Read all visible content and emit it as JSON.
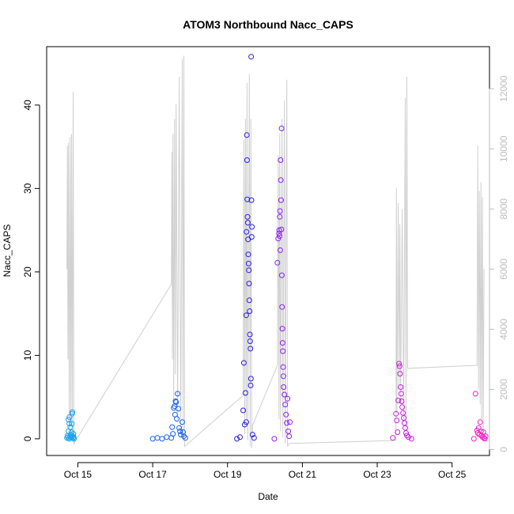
{
  "chart_data": {
    "type": "scatter",
    "title": "ATOM3 Northbound Nacc_CAPS",
    "xlabel": "Date",
    "ylabel": "Nacc_CAPS",
    "xlim": [
      "2021-10-14T04:00",
      "2021-10-26T00:00"
    ],
    "ylim": [
      -2,
      47
    ],
    "y2lim": [
      -200,
      13400
    ],
    "x_ticks": [
      {
        "date": "2021-10-15T00:00",
        "label": "Oct 15"
      },
      {
        "date": "2021-10-17T00:00",
        "label": "Oct 17"
      },
      {
        "date": "2021-10-19T00:00",
        "label": "Oct 19"
      },
      {
        "date": "2021-10-21T00:00",
        "label": "Oct 21"
      },
      {
        "date": "2021-10-23T00:00",
        "label": "Oct 23"
      },
      {
        "date": "2021-10-25T00:00",
        "label": "Oct 25"
      }
    ],
    "y_ticks": [
      0,
      10,
      20,
      30,
      40
    ],
    "y2_ticks": [
      0,
      2000,
      4000,
      6000,
      8000,
      10000,
      12000
    ],
    "grid": false,
    "line_color": "#d0d0d0",
    "secondary_line": [
      {
        "x": "2021-10-14T17:00",
        "y": 6000
      },
      {
        "x": "2021-10-14T17:20",
        "y": 10100
      },
      {
        "x": "2021-10-14T17:40",
        "y": 3000
      },
      {
        "x": "2021-10-14T18:00",
        "y": 10200
      },
      {
        "x": "2021-10-14T18:30",
        "y": 500
      },
      {
        "x": "2021-10-14T19:00",
        "y": 10400
      },
      {
        "x": "2021-10-14T19:30",
        "y": 800
      },
      {
        "x": "2021-10-14T20:00",
        "y": 10500
      },
      {
        "x": "2021-10-14T20:30",
        "y": 300
      },
      {
        "x": "2021-10-14T21:00",
        "y": 11900
      },
      {
        "x": "2021-10-14T21:30",
        "y": 200
      },
      {
        "x": "2021-10-17T12:00",
        "y": 5500
      },
      {
        "x": "2021-10-17T12:20",
        "y": 9900
      },
      {
        "x": "2021-10-17T12:40",
        "y": 3000
      },
      {
        "x": "2021-10-17T13:00",
        "y": 10500
      },
      {
        "x": "2021-10-17T13:30",
        "y": 1500
      },
      {
        "x": "2021-10-17T14:00",
        "y": 11000
      },
      {
        "x": "2021-10-17T14:30",
        "y": 2500
      },
      {
        "x": "2021-10-17T15:00",
        "y": 11500
      },
      {
        "x": "2021-10-17T16:00",
        "y": 1000
      },
      {
        "x": "2021-10-17T17:00",
        "y": 12400
      },
      {
        "x": "2021-10-17T18:00",
        "y": 500
      },
      {
        "x": "2021-10-17T19:00",
        "y": 13000
      },
      {
        "x": "2021-10-17T19:30",
        "y": 300
      },
      {
        "x": "2021-10-17T20:00",
        "y": 13100
      },
      {
        "x": "2021-10-17T20:30",
        "y": 100
      },
      {
        "x": "2021-10-19T10:00",
        "y": 1800
      },
      {
        "x": "2021-10-19T10:30",
        "y": 10300
      },
      {
        "x": "2021-10-19T11:00",
        "y": 500
      },
      {
        "x": "2021-10-19T11:30",
        "y": 11000
      },
      {
        "x": "2021-10-19T12:00",
        "y": 1000
      },
      {
        "x": "2021-10-19T12:30",
        "y": 12200
      },
      {
        "x": "2021-10-19T13:00",
        "y": 300
      },
      {
        "x": "2021-10-19T14:00",
        "y": 12500
      },
      {
        "x": "2021-10-19T14:30",
        "y": 100
      },
      {
        "x": "2021-10-19T15:00",
        "y": 11000
      },
      {
        "x": "2021-10-19T15:30",
        "y": 50
      },
      {
        "x": "2021-10-19T16:00",
        "y": 800
      },
      {
        "x": "2021-10-20T08:00",
        "y": 2800
      },
      {
        "x": "2021-10-20T08:30",
        "y": 9800
      },
      {
        "x": "2021-10-20T09:00",
        "y": 1000
      },
      {
        "x": "2021-10-20T09:30",
        "y": 10500
      },
      {
        "x": "2021-10-20T10:00",
        "y": 600
      },
      {
        "x": "2021-10-20T11:00",
        "y": 11000
      },
      {
        "x": "2021-10-20T11:30",
        "y": 400
      },
      {
        "x": "2021-10-20T12:30",
        "y": 11600
      },
      {
        "x": "2021-10-20T13:00",
        "y": 200
      },
      {
        "x": "2021-10-20T14:00",
        "y": 12300
      },
      {
        "x": "2021-10-20T14:30",
        "y": 100
      },
      {
        "x": "2021-10-20T15:30",
        "y": 200
      },
      {
        "x": "2021-10-23T12:00",
        "y": 300
      },
      {
        "x": "2021-10-23T12:20",
        "y": 8700
      },
      {
        "x": "2021-10-23T12:40",
        "y": 1200
      },
      {
        "x": "2021-10-23T13:30",
        "y": 8200
      },
      {
        "x": "2021-10-23T14:00",
        "y": 2000
      },
      {
        "x": "2021-10-23T14:30",
        "y": 7500
      },
      {
        "x": "2021-10-23T15:00",
        "y": 1500
      },
      {
        "x": "2021-10-23T16:00",
        "y": 8000
      },
      {
        "x": "2021-10-23T17:00",
        "y": 1000
      },
      {
        "x": "2021-10-23T18:00",
        "y": 11700
      },
      {
        "x": "2021-10-23T18:30",
        "y": 600
      },
      {
        "x": "2021-10-23T19:00",
        "y": 12400
      },
      {
        "x": "2021-10-23T19:30",
        "y": 2700
      },
      {
        "x": "2021-10-25T16:00",
        "y": 2800
      },
      {
        "x": "2021-10-25T16:30",
        "y": 10100
      },
      {
        "x": "2021-10-25T17:00",
        "y": 2000
      },
      {
        "x": "2021-10-25T17:30",
        "y": 8600
      },
      {
        "x": "2021-10-25T18:00",
        "y": 1500
      },
      {
        "x": "2021-10-25T18:30",
        "y": 8900
      },
      {
        "x": "2021-10-25T19:00",
        "y": 1000
      },
      {
        "x": "2021-10-25T19:30",
        "y": 8400
      },
      {
        "x": "2021-10-25T20:00",
        "y": 600
      },
      {
        "x": "2021-10-25T20:30",
        "y": 6000
      }
    ],
    "series": [
      {
        "color": "#1aa3f0",
        "points": [
          {
            "x": "2021-10-14T17:00",
            "y": 0.1
          },
          {
            "x": "2021-10-14T17:30",
            "y": 0.4
          },
          {
            "x": "2021-10-14T18:00",
            "y": 0.9
          },
          {
            "x": "2021-10-14T18:00",
            "y": 2.3
          },
          {
            "x": "2021-10-14T18:30",
            "y": 1.8
          },
          {
            "x": "2021-10-14T18:40",
            "y": 2.6
          },
          {
            "x": "2021-10-14T19:00",
            "y": 0.2
          },
          {
            "x": "2021-10-14T19:10",
            "y": 1.4
          },
          {
            "x": "2021-10-14T19:30",
            "y": 0.5
          },
          {
            "x": "2021-10-14T19:40",
            "y": 0.1
          },
          {
            "x": "2021-10-14T20:00",
            "y": 0.8
          },
          {
            "x": "2021-10-14T20:10",
            "y": 1.8
          },
          {
            "x": "2021-10-14T20:20",
            "y": 3.0
          },
          {
            "x": "2021-10-14T20:30",
            "y": 3.2
          },
          {
            "x": "2021-10-14T20:40",
            "y": 0.3
          },
          {
            "x": "2021-10-14T21:00",
            "y": 0.1
          },
          {
            "x": "2021-10-14T21:10",
            "y": 0.6
          },
          {
            "x": "2021-10-14T21:20",
            "y": 0.2
          },
          {
            "x": "2021-10-14T21:30",
            "y": 0.0
          },
          {
            "x": "2021-10-14T18:20",
            "y": 0.0
          },
          {
            "x": "2021-10-14T17:40",
            "y": 0.2
          },
          {
            "x": "2021-10-14T19:50",
            "y": 0.3
          }
        ]
      },
      {
        "color": "#1960ea",
        "points": [
          {
            "x": "2021-10-17T00:00",
            "y": 0.0
          },
          {
            "x": "2021-10-17T03:00",
            "y": 0.1
          },
          {
            "x": "2021-10-17T06:00",
            "y": 0.0
          },
          {
            "x": "2021-10-17T09:00",
            "y": 0.2
          },
          {
            "x": "2021-10-17T12:00",
            "y": 0.1
          },
          {
            "x": "2021-10-17T12:30",
            "y": 1.4
          },
          {
            "x": "2021-10-17T13:00",
            "y": 0.6
          },
          {
            "x": "2021-10-17T13:30",
            "y": 3.7
          },
          {
            "x": "2021-10-17T14:00",
            "y": 3.9
          },
          {
            "x": "2021-10-17T14:20",
            "y": 2.9
          },
          {
            "x": "2021-10-17T14:40",
            "y": 4.5
          },
          {
            "x": "2021-10-17T15:00",
            "y": 4.4
          },
          {
            "x": "2021-10-17T15:30",
            "y": 2.4
          },
          {
            "x": "2021-10-17T16:00",
            "y": 5.4
          },
          {
            "x": "2021-10-17T16:30",
            "y": 3.6
          },
          {
            "x": "2021-10-17T17:00",
            "y": 1.3
          },
          {
            "x": "2021-10-17T17:30",
            "y": 0.9
          },
          {
            "x": "2021-10-17T18:00",
            "y": 0.5
          },
          {
            "x": "2021-10-17T19:00",
            "y": 2.0
          },
          {
            "x": "2021-10-17T19:30",
            "y": 0.8
          },
          {
            "x": "2021-10-17T20:00",
            "y": 0.3
          },
          {
            "x": "2021-10-17T21:00",
            "y": 0.1
          }
        ]
      },
      {
        "color": "#2a1de8",
        "points": [
          {
            "x": "2021-10-19T06:00",
            "y": 0.0
          },
          {
            "x": "2021-10-19T08:00",
            "y": 0.2
          },
          {
            "x": "2021-10-19T10:00",
            "y": 3.4
          },
          {
            "x": "2021-10-19T10:30",
            "y": 9.1
          },
          {
            "x": "2021-10-19T11:00",
            "y": 1.7
          },
          {
            "x": "2021-10-19T11:30",
            "y": 5.5
          },
          {
            "x": "2021-10-19T12:00",
            "y": 2.0
          },
          {
            "x": "2021-10-19T12:00",
            "y": 14.8
          },
          {
            "x": "2021-10-19T12:10",
            "y": 24.8
          },
          {
            "x": "2021-10-19T12:20",
            "y": 36.4
          },
          {
            "x": "2021-10-19T12:30",
            "y": 33.4
          },
          {
            "x": "2021-10-19T12:40",
            "y": 28.7
          },
          {
            "x": "2021-10-19T12:50",
            "y": 26.6
          },
          {
            "x": "2021-10-19T13:00",
            "y": 25.9
          },
          {
            "x": "2021-10-19T13:10",
            "y": 23.9
          },
          {
            "x": "2021-10-19T13:20",
            "y": 22.1
          },
          {
            "x": "2021-10-19T13:30",
            "y": 21.0
          },
          {
            "x": "2021-10-19T13:40",
            "y": 20.2
          },
          {
            "x": "2021-10-19T13:50",
            "y": 18.6
          },
          {
            "x": "2021-10-19T14:00",
            "y": 16.6
          },
          {
            "x": "2021-10-19T14:10",
            "y": 15.3
          },
          {
            "x": "2021-10-19T14:20",
            "y": 12.5
          },
          {
            "x": "2021-10-19T14:30",
            "y": 11.7
          },
          {
            "x": "2021-10-19T14:40",
            "y": 10.8
          },
          {
            "x": "2021-10-19T14:50",
            "y": 6.4
          },
          {
            "x": "2021-10-19T15:00",
            "y": 7.2
          },
          {
            "x": "2021-10-19T15:10",
            "y": 45.8
          },
          {
            "x": "2021-10-19T15:20",
            "y": 28.6
          },
          {
            "x": "2021-10-19T15:30",
            "y": 24.2
          },
          {
            "x": "2021-10-19T15:40",
            "y": 25.4
          },
          {
            "x": "2021-10-19T16:00",
            "y": 0.5
          },
          {
            "x": "2021-10-19T17:00",
            "y": 0.1
          }
        ]
      },
      {
        "color": "#8d1ff0",
        "points": [
          {
            "x": "2021-10-20T06:00",
            "y": 0.0
          },
          {
            "x": "2021-10-20T08:00",
            "y": 21.1
          },
          {
            "x": "2021-10-20T08:30",
            "y": 24.0
          },
          {
            "x": "2021-10-20T09:00",
            "y": 24.6
          },
          {
            "x": "2021-10-20T09:10",
            "y": 25.0
          },
          {
            "x": "2021-10-20T09:20",
            "y": 24.3
          },
          {
            "x": "2021-10-20T09:30",
            "y": 26.6
          },
          {
            "x": "2021-10-20T09:40",
            "y": 27.3
          },
          {
            "x": "2021-10-20T09:50",
            "y": 22.6
          },
          {
            "x": "2021-10-20T10:00",
            "y": 33.4
          },
          {
            "x": "2021-10-20T10:10",
            "y": 31.0
          },
          {
            "x": "2021-10-20T10:20",
            "y": 28.6
          },
          {
            "x": "2021-10-20T10:30",
            "y": 25.1
          },
          {
            "x": "2021-10-20T10:40",
            "y": 37.2
          },
          {
            "x": "2021-10-20T10:50",
            "y": 19.6
          },
          {
            "x": "2021-10-20T11:00",
            "y": 15.8
          },
          {
            "x": "2021-10-20T11:10",
            "y": 13.2
          },
          {
            "x": "2021-10-20T11:20",
            "y": 11.5
          },
          {
            "x": "2021-10-20T11:30",
            "y": 10.5
          },
          {
            "x": "2021-10-20T11:40",
            "y": 8.6
          },
          {
            "x": "2021-10-20T11:50",
            "y": 7.5
          },
          {
            "x": "2021-10-20T12:00",
            "y": 6.2
          },
          {
            "x": "2021-10-20T12:30",
            "y": 5.3
          },
          {
            "x": "2021-10-20T13:00",
            "y": 4.1
          },
          {
            "x": "2021-10-20T13:30",
            "y": 2.9
          },
          {
            "x": "2021-10-20T14:00",
            "y": 1.9
          },
          {
            "x": "2021-10-20T14:30",
            "y": 4.8
          },
          {
            "x": "2021-10-20T15:00",
            "y": 0.9
          },
          {
            "x": "2021-10-20T15:30",
            "y": 0.3
          },
          {
            "x": "2021-10-20T16:00",
            "y": 2.0
          }
        ]
      },
      {
        "color": "#c91ee0",
        "points": [
          {
            "x": "2021-10-23T10:00",
            "y": 0.1
          },
          {
            "x": "2021-10-23T12:00",
            "y": 3.0
          },
          {
            "x": "2021-10-23T12:30",
            "y": 2.2
          },
          {
            "x": "2021-10-23T13:00",
            "y": 0.8
          },
          {
            "x": "2021-10-23T13:30",
            "y": 4.6
          },
          {
            "x": "2021-10-23T14:00",
            "y": 9.0
          },
          {
            "x": "2021-10-23T14:20",
            "y": 8.7
          },
          {
            "x": "2021-10-23T14:40",
            "y": 7.8
          },
          {
            "x": "2021-10-23T15:00",
            "y": 6.2
          },
          {
            "x": "2021-10-23T15:20",
            "y": 5.4
          },
          {
            "x": "2021-10-23T15:40",
            "y": 4.5
          },
          {
            "x": "2021-10-23T16:00",
            "y": 3.8
          },
          {
            "x": "2021-10-23T16:30",
            "y": 3.1
          },
          {
            "x": "2021-10-23T17:00",
            "y": 2.5
          },
          {
            "x": "2021-10-23T17:30",
            "y": 1.9
          },
          {
            "x": "2021-10-23T18:00",
            "y": 1.3
          },
          {
            "x": "2021-10-23T18:30",
            "y": 0.7
          },
          {
            "x": "2021-10-23T19:00",
            "y": 0.4
          },
          {
            "x": "2021-10-23T20:00",
            "y": 0.2
          },
          {
            "x": "2021-10-23T22:00",
            "y": 0.0
          }
        ]
      },
      {
        "color": "#f51ec8",
        "points": [
          {
            "x": "2021-10-25T14:00",
            "y": 0.0
          },
          {
            "x": "2021-10-25T15:00",
            "y": 5.4
          },
          {
            "x": "2021-10-25T16:00",
            "y": 1.0
          },
          {
            "x": "2021-10-25T16:30",
            "y": 0.7
          },
          {
            "x": "2021-10-25T17:00",
            "y": 1.3
          },
          {
            "x": "2021-10-25T17:30",
            "y": 0.5
          },
          {
            "x": "2021-10-25T18:00",
            "y": 2.0
          },
          {
            "x": "2021-10-25T18:30",
            "y": 0.9
          },
          {
            "x": "2021-10-25T19:00",
            "y": 0.4
          },
          {
            "x": "2021-10-25T19:30",
            "y": 0.2
          },
          {
            "x": "2021-10-25T20:00",
            "y": 0.8
          },
          {
            "x": "2021-10-25T20:30",
            "y": 0.1
          },
          {
            "x": "2021-10-25T21:00",
            "y": 0.0
          },
          {
            "x": "2021-10-25T21:30",
            "y": 0.3
          }
        ]
      }
    ]
  }
}
